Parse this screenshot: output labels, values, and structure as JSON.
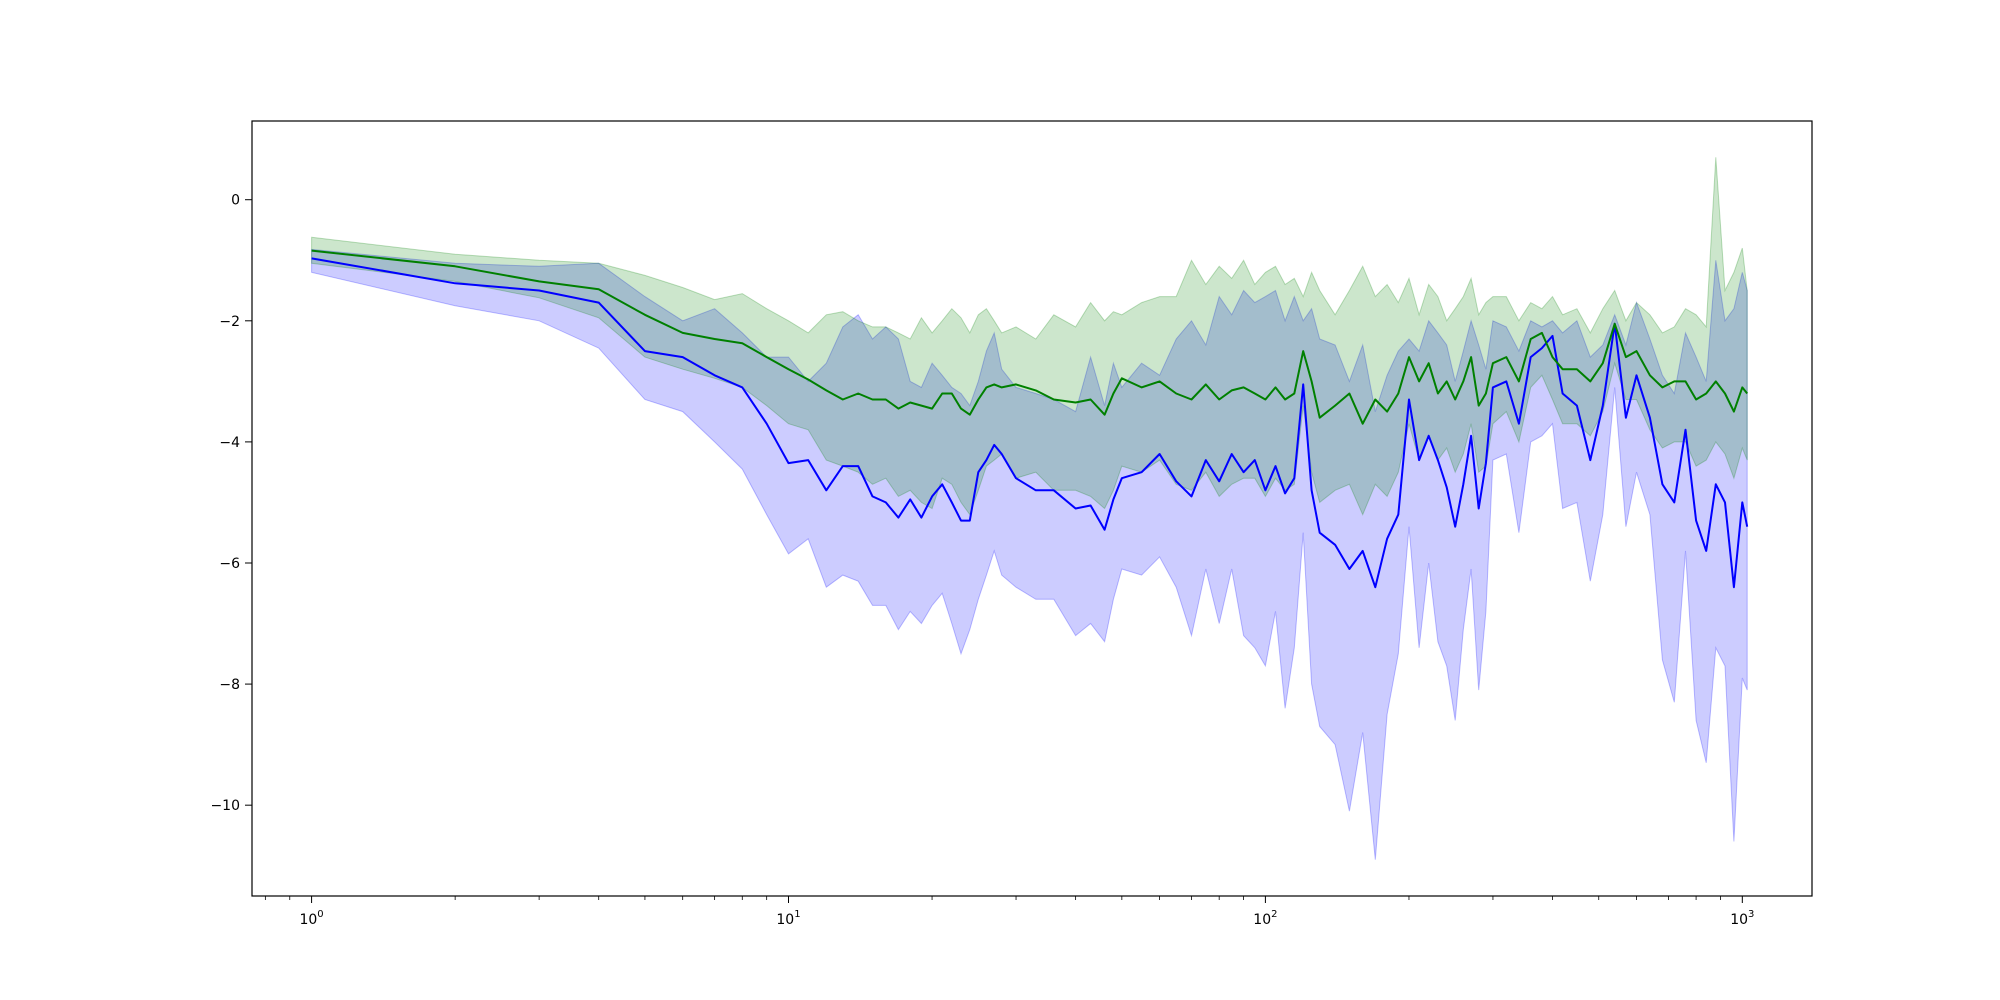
{
  "chart_data": {
    "type": "line",
    "title": "",
    "xlabel": "",
    "ylabel": "",
    "x_scale": "log",
    "xlim": [
      0.75,
      1400
    ],
    "ylim": [
      -11.5,
      1.3
    ],
    "grid": false,
    "legend": "none",
    "x_ticks": [
      {
        "value": 1,
        "base": "10",
        "exp": "0"
      },
      {
        "value": 10,
        "base": "10",
        "exp": "1"
      },
      {
        "value": 100,
        "base": "10",
        "exp": "2"
      },
      {
        "value": 1000,
        "base": "10",
        "exp": "3"
      }
    ],
    "y_ticks": [
      {
        "value": 0,
        "label": "0"
      },
      {
        "value": -2,
        "label": "−2"
      },
      {
        "value": -4,
        "label": "−4"
      },
      {
        "value": -6,
        "label": "−6"
      },
      {
        "value": -8,
        "label": "−8"
      },
      {
        "value": -10,
        "label": "−10"
      }
    ],
    "series": [
      {
        "color": "#0000ff",
        "band_color": "#0000ff",
        "x": [
          1,
          2,
          3,
          4,
          5,
          6,
          7,
          8,
          9,
          10,
          11,
          12,
          13,
          14,
          15,
          16,
          17,
          18,
          19,
          20,
          21,
          22,
          23,
          24,
          25,
          26,
          27,
          28,
          30,
          33,
          36,
          40,
          43,
          46,
          48,
          50,
          55,
          60,
          65,
          70,
          75,
          80,
          85,
          90,
          95,
          100,
          105,
          110,
          115,
          120,
          125,
          130,
          140,
          150,
          160,
          170,
          180,
          190,
          200,
          210,
          220,
          230,
          240,
          250,
          260,
          270,
          280,
          290,
          300,
          320,
          340,
          360,
          380,
          400,
          420,
          450,
          480,
          510,
          540,
          570,
          600,
          640,
          680,
          720,
          760,
          800,
          840,
          880,
          920,
          960,
          1000,
          1024
        ],
        "mean": [
          -0.97,
          -1.38,
          -1.5,
          -1.7,
          -2.5,
          -2.6,
          -2.9,
          -3.1,
          -3.7,
          -4.35,
          -4.3,
          -4.8,
          -4.4,
          -4.4,
          -4.9,
          -5.0,
          -5.25,
          -4.95,
          -5.25,
          -4.9,
          -4.7,
          -5.0,
          -5.3,
          -5.3,
          -4.5,
          -4.3,
          -4.05,
          -4.2,
          -4.6,
          -4.8,
          -4.8,
          -5.1,
          -5.05,
          -5.45,
          -4.95,
          -4.6,
          -4.5,
          -4.2,
          -4.65,
          -4.9,
          -4.3,
          -4.65,
          -4.2,
          -4.5,
          -4.3,
          -4.8,
          -4.4,
          -4.85,
          -4.6,
          -3.05,
          -4.8,
          -5.5,
          -5.7,
          -6.1,
          -5.8,
          -6.4,
          -5.6,
          -5.2,
          -3.3,
          -4.3,
          -3.9,
          -4.3,
          -4.75,
          -5.4,
          -4.7,
          -3.9,
          -5.1,
          -4.35,
          -3.1,
          -3.0,
          -3.7,
          -2.6,
          -2.45,
          -2.25,
          -3.2,
          -3.4,
          -4.3,
          -3.4,
          -2.05,
          -3.6,
          -2.9,
          -3.6,
          -4.7,
          -5.0,
          -3.8,
          -5.3,
          -5.8,
          -4.7,
          -5.0,
          -6.4,
          -5.0,
          -5.4
        ],
        "upper": [
          -0.82,
          -1.05,
          -1.1,
          -1.05,
          -1.6,
          -2.0,
          -1.8,
          -2.2,
          -2.6,
          -2.6,
          -3.0,
          -2.7,
          -2.1,
          -1.9,
          -2.3,
          -2.1,
          -2.3,
          -3.0,
          -3.1,
          -2.7,
          -2.9,
          -3.1,
          -3.2,
          -3.4,
          -3.0,
          -2.5,
          -2.2,
          -2.8,
          -3.1,
          -3.2,
          -3.3,
          -3.5,
          -2.6,
          -3.4,
          -2.7,
          -3.1,
          -2.7,
          -2.9,
          -2.3,
          -2.0,
          -2.4,
          -1.6,
          -1.9,
          -1.5,
          -1.7,
          -1.6,
          -1.5,
          -2.0,
          -1.6,
          -2.0,
          -1.8,
          -2.3,
          -2.4,
          -3.0,
          -2.4,
          -3.5,
          -2.9,
          -2.5,
          -2.3,
          -2.5,
          -2.0,
          -2.2,
          -2.4,
          -3.0,
          -2.5,
          -2.0,
          -2.4,
          -2.8,
          -2.0,
          -2.1,
          -2.5,
          -2.0,
          -2.1,
          -2.0,
          -2.2,
          -2.0,
          -2.6,
          -2.4,
          -1.9,
          -2.4,
          -1.7,
          -2.3,
          -2.9,
          -3.2,
          -2.2,
          -2.6,
          -3.0,
          -1.0,
          -2.0,
          -1.8,
          -1.2,
          -1.5
        ],
        "lower": [
          -1.2,
          -1.75,
          -2.0,
          -2.45,
          -3.3,
          -3.5,
          -4.0,
          -4.45,
          -5.2,
          -5.85,
          -5.6,
          -6.4,
          -6.2,
          -6.3,
          -6.7,
          -6.7,
          -7.1,
          -6.8,
          -7.0,
          -6.7,
          -6.5,
          -7.0,
          -7.5,
          -7.1,
          -6.6,
          -6.2,
          -5.8,
          -6.2,
          -6.4,
          -6.6,
          -6.6,
          -7.2,
          -7.0,
          -7.3,
          -6.6,
          -6.1,
          -6.2,
          -5.9,
          -6.4,
          -7.2,
          -6.1,
          -7.0,
          -6.1,
          -7.2,
          -7.4,
          -7.7,
          -6.8,
          -8.4,
          -7.4,
          -5.5,
          -8.0,
          -8.7,
          -9.0,
          -10.1,
          -8.8,
          -10.9,
          -8.5,
          -7.5,
          -5.4,
          -7.4,
          -6.0,
          -7.3,
          -7.7,
          -8.6,
          -7.1,
          -6.1,
          -8.1,
          -6.8,
          -4.3,
          -4.2,
          -5.5,
          -4.0,
          -3.9,
          -3.7,
          -5.1,
          -5.0,
          -6.3,
          -5.2,
          -3.1,
          -5.4,
          -4.5,
          -5.2,
          -7.6,
          -8.3,
          -5.8,
          -8.6,
          -9.3,
          -7.4,
          -7.7,
          -10.6,
          -7.9,
          -8.1
        ]
      },
      {
        "color": "#008000",
        "band_color": "#008000",
        "x": [
          1,
          2,
          3,
          4,
          5,
          6,
          7,
          8,
          9,
          10,
          11,
          12,
          13,
          14,
          15,
          16,
          17,
          18,
          19,
          20,
          21,
          22,
          23,
          24,
          25,
          26,
          27,
          28,
          30,
          33,
          36,
          40,
          43,
          46,
          48,
          50,
          55,
          60,
          65,
          70,
          75,
          80,
          85,
          90,
          95,
          100,
          105,
          110,
          115,
          120,
          125,
          130,
          140,
          150,
          160,
          170,
          180,
          190,
          200,
          210,
          220,
          230,
          240,
          250,
          260,
          270,
          280,
          290,
          300,
          320,
          340,
          360,
          380,
          400,
          420,
          450,
          480,
          510,
          540,
          570,
          600,
          640,
          680,
          720,
          760,
          800,
          840,
          880,
          920,
          960,
          1000,
          1024
        ],
        "mean": [
          -0.84,
          -1.1,
          -1.35,
          -1.48,
          -1.9,
          -2.2,
          -2.3,
          -2.37,
          -2.6,
          -2.8,
          -2.97,
          -3.15,
          -3.3,
          -3.2,
          -3.3,
          -3.3,
          -3.45,
          -3.35,
          -3.4,
          -3.45,
          -3.2,
          -3.2,
          -3.45,
          -3.55,
          -3.3,
          -3.1,
          -3.05,
          -3.1,
          -3.05,
          -3.15,
          -3.3,
          -3.35,
          -3.3,
          -3.55,
          -3.2,
          -2.95,
          -3.1,
          -3.0,
          -3.2,
          -3.3,
          -3.05,
          -3.3,
          -3.15,
          -3.1,
          -3.2,
          -3.3,
          -3.1,
          -3.3,
          -3.2,
          -2.5,
          -3.0,
          -3.6,
          -3.4,
          -3.2,
          -3.7,
          -3.3,
          -3.5,
          -3.2,
          -2.6,
          -3.0,
          -2.7,
          -3.2,
          -3.0,
          -3.3,
          -3.0,
          -2.6,
          -3.4,
          -3.2,
          -2.7,
          -2.6,
          -3.0,
          -2.3,
          -2.2,
          -2.6,
          -2.8,
          -2.8,
          -3.0,
          -2.7,
          -2.05,
          -2.6,
          -2.5,
          -2.9,
          -3.1,
          -3.0,
          -3.0,
          -3.3,
          -3.2,
          -3.0,
          -3.2,
          -3.5,
          -3.1,
          -3.2
        ],
        "upper": [
          -0.62,
          -0.9,
          -1.0,
          -1.05,
          -1.25,
          -1.45,
          -1.65,
          -1.55,
          -1.8,
          -2.0,
          -2.2,
          -1.9,
          -1.85,
          -2.0,
          -2.1,
          -2.1,
          -2.2,
          -2.3,
          -1.95,
          -2.2,
          -2.0,
          -1.8,
          -1.95,
          -2.2,
          -1.9,
          -1.8,
          -2.0,
          -2.2,
          -2.1,
          -2.3,
          -1.9,
          -2.1,
          -1.7,
          -2.0,
          -1.85,
          -1.9,
          -1.7,
          -1.6,
          -1.6,
          -1.0,
          -1.4,
          -1.1,
          -1.3,
          -1.0,
          -1.4,
          -1.2,
          -1.1,
          -1.4,
          -1.3,
          -1.6,
          -1.2,
          -1.5,
          -1.9,
          -1.5,
          -1.1,
          -1.6,
          -1.4,
          -1.7,
          -1.3,
          -1.9,
          -1.4,
          -1.6,
          -2.0,
          -1.8,
          -1.6,
          -1.3,
          -1.9,
          -1.7,
          -1.6,
          -1.6,
          -2.0,
          -1.7,
          -1.8,
          -1.6,
          -1.9,
          -1.8,
          -2.2,
          -1.8,
          -1.5,
          -2.0,
          -1.7,
          -1.9,
          -2.2,
          -2.1,
          -1.8,
          -1.9,
          -2.1,
          0.7,
          -1.5,
          -1.2,
          -0.8,
          -1.5
        ],
        "lower": [
          -1.05,
          -1.35,
          -1.62,
          -1.95,
          -2.6,
          -2.8,
          -2.95,
          -3.1,
          -3.4,
          -3.7,
          -3.8,
          -4.3,
          -4.4,
          -4.5,
          -4.7,
          -4.6,
          -4.9,
          -4.8,
          -5.0,
          -5.1,
          -4.6,
          -4.7,
          -5.0,
          -5.2,
          -4.8,
          -4.4,
          -4.3,
          -4.2,
          -4.6,
          -4.5,
          -4.8,
          -4.8,
          -4.9,
          -5.1,
          -4.8,
          -4.4,
          -4.5,
          -4.3,
          -4.7,
          -4.8,
          -4.5,
          -4.9,
          -4.7,
          -4.6,
          -4.6,
          -4.9,
          -4.6,
          -4.8,
          -4.7,
          -3.4,
          -4.5,
          -5.0,
          -4.8,
          -4.7,
          -5.2,
          -4.7,
          -4.9,
          -4.5,
          -3.7,
          -4.3,
          -3.9,
          -4.3,
          -4.1,
          -4.5,
          -4.2,
          -3.7,
          -4.5,
          -4.4,
          -3.7,
          -3.5,
          -4.0,
          -3.1,
          -2.9,
          -3.3,
          -3.7,
          -3.7,
          -3.9,
          -3.5,
          -2.7,
          -3.3,
          -3.3,
          -3.8,
          -4.1,
          -4.0,
          -4.0,
          -4.4,
          -4.3,
          -4.0,
          -4.2,
          -4.6,
          -4.1,
          -4.3
        ]
      }
    ]
  }
}
